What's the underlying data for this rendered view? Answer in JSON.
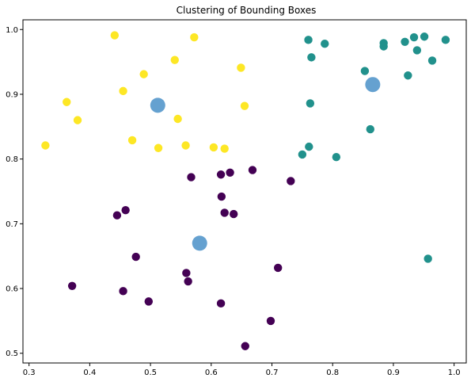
{
  "chart_data": {
    "type": "scatter",
    "title": "Clustering of Bounding Boxes",
    "xlabel": "",
    "ylabel": "",
    "xlim": [
      0.29,
      1.02
    ],
    "ylim": [
      0.485,
      1.015
    ],
    "grid": false,
    "xticks": [
      0.3,
      0.4,
      0.5,
      0.6,
      0.7,
      0.8,
      0.9,
      1.0
    ],
    "xtick_labels": [
      "0.3",
      "0.4",
      "0.5",
      "0.6",
      "0.7",
      "0.8",
      "0.9",
      "1.0"
    ],
    "yticks": [
      0.5,
      0.6,
      0.7,
      0.8,
      0.9,
      1.0
    ],
    "ytick_labels": [
      "0.5",
      "0.6",
      "0.7",
      "0.8",
      "0.9",
      "1.0"
    ],
    "colors": {
      "cluster_yellow": "#fde725",
      "cluster_teal": "#21918c",
      "cluster_purple": "#440154",
      "centroid": "#4a90c8"
    },
    "series": [
      {
        "color_key": "cluster_yellow",
        "points": [
          [
            0.441,
            0.991
          ],
          [
            0.572,
            0.988
          ],
          [
            0.54,
            0.953
          ],
          [
            0.649,
            0.941
          ],
          [
            0.489,
            0.931
          ],
          [
            0.455,
            0.905
          ],
          [
            0.362,
            0.888
          ],
          [
            0.655,
            0.882
          ],
          [
            0.38,
            0.86
          ],
          [
            0.545,
            0.862
          ],
          [
            0.327,
            0.821
          ],
          [
            0.47,
            0.829
          ],
          [
            0.513,
            0.817
          ],
          [
            0.558,
            0.821
          ],
          [
            0.604,
            0.818
          ],
          [
            0.622,
            0.816
          ]
        ]
      },
      {
        "color_key": "cluster_teal",
        "points": [
          [
            0.76,
            0.984
          ],
          [
            0.787,
            0.978
          ],
          [
            0.884,
            0.979
          ],
          [
            0.884,
            0.974
          ],
          [
            0.919,
            0.981
          ],
          [
            0.934,
            0.988
          ],
          [
            0.951,
            0.989
          ],
          [
            0.986,
            0.984
          ],
          [
            0.939,
            0.968
          ],
          [
            0.765,
            0.957
          ],
          [
            0.964,
            0.952
          ],
          [
            0.853,
            0.936
          ],
          [
            0.924,
            0.929
          ],
          [
            0.763,
            0.886
          ],
          [
            0.862,
            0.846
          ],
          [
            0.761,
            0.819
          ],
          [
            0.75,
            0.807
          ],
          [
            0.806,
            0.803
          ],
          [
            0.957,
            0.646
          ]
        ]
      },
      {
        "color_key": "cluster_purple",
        "points": [
          [
            0.668,
            0.783
          ],
          [
            0.631,
            0.779
          ],
          [
            0.616,
            0.776
          ],
          [
            0.567,
            0.772
          ],
          [
            0.731,
            0.766
          ],
          [
            0.617,
            0.742
          ],
          [
            0.459,
            0.721
          ],
          [
            0.445,
            0.713
          ],
          [
            0.622,
            0.717
          ],
          [
            0.637,
            0.715
          ],
          [
            0.476,
            0.649
          ],
          [
            0.71,
            0.632
          ],
          [
            0.559,
            0.624
          ],
          [
            0.562,
            0.611
          ],
          [
            0.371,
            0.604
          ],
          [
            0.455,
            0.596
          ],
          [
            0.497,
            0.58
          ],
          [
            0.616,
            0.577
          ],
          [
            0.698,
            0.55
          ],
          [
            0.656,
            0.511
          ]
        ]
      },
      {
        "color_key": "centroid",
        "size": "large",
        "alpha": 0.85,
        "points": [
          [
            0.512,
            0.883
          ],
          [
            0.866,
            0.915
          ],
          [
            0.581,
            0.67
          ]
        ]
      }
    ]
  }
}
